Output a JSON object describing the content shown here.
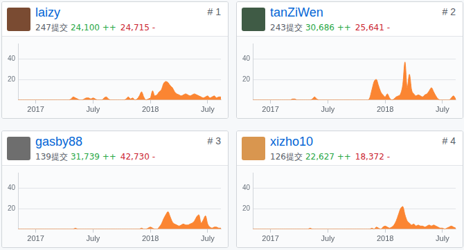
{
  "chart_data": [
    {
      "type": "area",
      "title": "laizy",
      "rank": "# 1",
      "commits": "247提交",
      "additions": "24,100 ++",
      "deletions": "24,715 -",
      "categories": [
        null,
        null,
        null,
        null,
        null,
        null,
        null,
        null,
        "2017",
        null,
        null,
        null,
        null,
        null,
        null,
        null,
        null,
        null,
        null,
        null,
        null,
        null,
        null,
        null,
        null,
        null,
        null,
        null,
        null,
        null,
        null,
        null,
        null,
        null,
        "July",
        null,
        null,
        null,
        null,
        null,
        null,
        null,
        null,
        null,
        null,
        null,
        null,
        null,
        null,
        null,
        null,
        null,
        null,
        null,
        null,
        null,
        null,
        null,
        null,
        null,
        "2018",
        null,
        null,
        null,
        null,
        null,
        null,
        null,
        null,
        null,
        null,
        null,
        null,
        null,
        null,
        null,
        null,
        null,
        null,
        null,
        null,
        null,
        null,
        null,
        null,
        null,
        "July",
        null,
        null,
        null,
        null,
        null,
        null
      ],
      "values": [
        0,
        0,
        0,
        0,
        0,
        0,
        0,
        0,
        0,
        0,
        0,
        0,
        0,
        0,
        0,
        0,
        0,
        0,
        0,
        0,
        0,
        0,
        0,
        0,
        1,
        3,
        2,
        1,
        0,
        0,
        1,
        2,
        2,
        1,
        2,
        1,
        0,
        0,
        0,
        2,
        3,
        1,
        0,
        0,
        0,
        0,
        0,
        0,
        0,
        1,
        3,
        1,
        2,
        0,
        1,
        4,
        8,
        3,
        0,
        1,
        2,
        9,
        4,
        5,
        8,
        10,
        16,
        18,
        17,
        14,
        12,
        8,
        6,
        5,
        4,
        5,
        6,
        5,
        4,
        5,
        6,
        5,
        4,
        3,
        2,
        3,
        4,
        2,
        3,
        4,
        2,
        3,
        3
      ],
      "color": "#fb8532",
      "ylim": [
        0,
        55
      ],
      "yticks": [
        20,
        40
      ],
      "grid": true
    },
    {
      "type": "area",
      "title": "tanZiWen",
      "rank": "# 2",
      "commits": "243提交",
      "additions": "30,686 ++",
      "deletions": "25,641 -",
      "categories": [
        null,
        null,
        null,
        null,
        null,
        null,
        null,
        null,
        "2017",
        null,
        null,
        null,
        null,
        null,
        null,
        null,
        null,
        null,
        null,
        null,
        null,
        null,
        null,
        null,
        null,
        null,
        null,
        null,
        null,
        null,
        null,
        null,
        null,
        null,
        "July",
        null,
        null,
        null,
        null,
        null,
        null,
        null,
        null,
        null,
        null,
        null,
        null,
        null,
        null,
        null,
        null,
        null,
        null,
        null,
        null,
        null,
        null,
        null,
        null,
        null,
        "2018",
        null,
        null,
        null,
        null,
        null,
        null,
        null,
        null,
        null,
        null,
        null,
        null,
        null,
        null,
        null,
        null,
        null,
        null,
        null,
        null,
        null,
        null,
        null,
        null,
        null,
        "July",
        null,
        null,
        null,
        null,
        null,
        null
      ],
      "values": [
        0,
        0,
        0,
        0,
        0,
        0,
        0,
        0,
        0,
        0,
        0,
        0,
        0,
        0,
        0,
        0,
        0,
        0,
        1,
        1,
        0,
        0,
        0,
        0,
        0,
        0,
        0,
        1,
        3,
        1,
        0,
        0,
        0,
        0,
        0,
        0,
        0,
        0,
        0,
        0,
        0,
        0,
        0,
        0,
        0,
        0,
        0,
        0,
        0,
        0,
        0,
        0,
        0,
        2,
        10,
        18,
        20,
        14,
        8,
        5,
        3,
        6,
        2,
        0,
        1,
        3,
        4,
        6,
        15,
        37,
        12,
        25,
        10,
        6,
        4,
        5,
        4,
        3,
        5,
        6,
        9,
        12,
        8,
        4,
        1,
        0,
        0,
        0,
        0,
        0,
        2,
        4,
        1
      ],
      "color": "#fb8532",
      "ylim": [
        0,
        55
      ],
      "yticks": [
        20,
        40
      ],
      "grid": true
    },
    {
      "type": "area",
      "title": "gasby88",
      "rank": "# 3",
      "commits": "139提交",
      "additions": "31,739 ++",
      "deletions": "42,730 -",
      "categories": [
        null,
        null,
        null,
        null,
        null,
        null,
        null,
        null,
        "2017",
        null,
        null,
        null,
        null,
        null,
        null,
        null,
        null,
        null,
        null,
        null,
        null,
        null,
        null,
        null,
        null,
        null,
        null,
        null,
        null,
        null,
        null,
        null,
        null,
        null,
        "July",
        null,
        null,
        null,
        null,
        null,
        null,
        null,
        null,
        null,
        null,
        null,
        null,
        null,
        null,
        null,
        null,
        null,
        null,
        null,
        null,
        null,
        null,
        null,
        null,
        null,
        "2018",
        null,
        null,
        null,
        null,
        null,
        null,
        null,
        null,
        null,
        null,
        null,
        null,
        null,
        null,
        null,
        null,
        null,
        null,
        null,
        null,
        null,
        null,
        null,
        null,
        null,
        "July",
        null,
        null,
        null,
        null,
        null,
        null
      ],
      "values": [
        0,
        0,
        0,
        0,
        0,
        0,
        0,
        0,
        0,
        0,
        0,
        0,
        0,
        0,
        0,
        0,
        0,
        0,
        0,
        0,
        0,
        0,
        0,
        0,
        0,
        0,
        1,
        0,
        0,
        0,
        0,
        0,
        0,
        0,
        0,
        0,
        0,
        0,
        0,
        0,
        0,
        0,
        0,
        0,
        0,
        0,
        0,
        0,
        0,
        0,
        0,
        0,
        0,
        0,
        0,
        0,
        1,
        0,
        0,
        1,
        2,
        1,
        0,
        0,
        2,
        5,
        10,
        14,
        17,
        12,
        7,
        5,
        4,
        3,
        4,
        5,
        4,
        4,
        5,
        6,
        8,
        12,
        14,
        6,
        9,
        13,
        5,
        2,
        1,
        2,
        2,
        1,
        1
      ],
      "color": "#fb8532",
      "ylim": [
        0,
        55
      ],
      "yticks": [
        20,
        40
      ],
      "grid": true
    },
    {
      "type": "area",
      "title": "xizho10",
      "rank": "# 4",
      "commits": "126提交",
      "additions": "22,627 ++",
      "deletions": "18,372 -",
      "categories": [
        null,
        null,
        null,
        null,
        null,
        null,
        null,
        null,
        "2017",
        null,
        null,
        null,
        null,
        null,
        null,
        null,
        null,
        null,
        null,
        null,
        null,
        null,
        null,
        null,
        null,
        null,
        null,
        null,
        null,
        null,
        null,
        null,
        null,
        null,
        "July",
        null,
        null,
        null,
        null,
        null,
        null,
        null,
        null,
        null,
        null,
        null,
        null,
        null,
        null,
        null,
        null,
        null,
        null,
        null,
        null,
        null,
        null,
        null,
        null,
        null,
        "2018",
        null,
        null,
        null,
        null,
        null,
        null,
        null,
        null,
        null,
        null,
        null,
        null,
        null,
        null,
        null,
        null,
        null,
        null,
        null,
        null,
        null,
        null,
        null,
        null,
        null,
        "July",
        null,
        null,
        null,
        null,
        null,
        null
      ],
      "values": [
        0,
        0,
        0,
        0,
        0,
        0,
        0,
        0,
        0,
        0,
        0,
        0,
        0,
        0,
        0,
        0,
        0,
        0,
        0,
        0,
        0,
        0,
        0,
        0,
        0,
        0,
        1,
        0,
        0,
        0,
        0,
        0,
        0,
        0,
        0,
        0,
        0,
        0,
        0,
        0,
        0,
        0,
        0,
        0,
        0,
        0,
        0,
        0,
        0,
        0,
        0,
        0,
        0,
        0,
        1,
        0,
        2,
        1,
        0,
        2,
        3,
        2,
        1,
        2,
        4,
        8,
        14,
        20,
        22,
        14,
        8,
        6,
        4,
        5,
        3,
        4,
        3,
        3,
        2,
        3,
        4,
        3,
        4,
        3,
        2,
        1,
        1,
        0,
        1,
        2,
        3,
        2,
        1
      ],
      "color": "#fb8532",
      "ylim": [
        0,
        55
      ],
      "yticks": [
        20,
        40
      ],
      "grid": true
    }
  ]
}
